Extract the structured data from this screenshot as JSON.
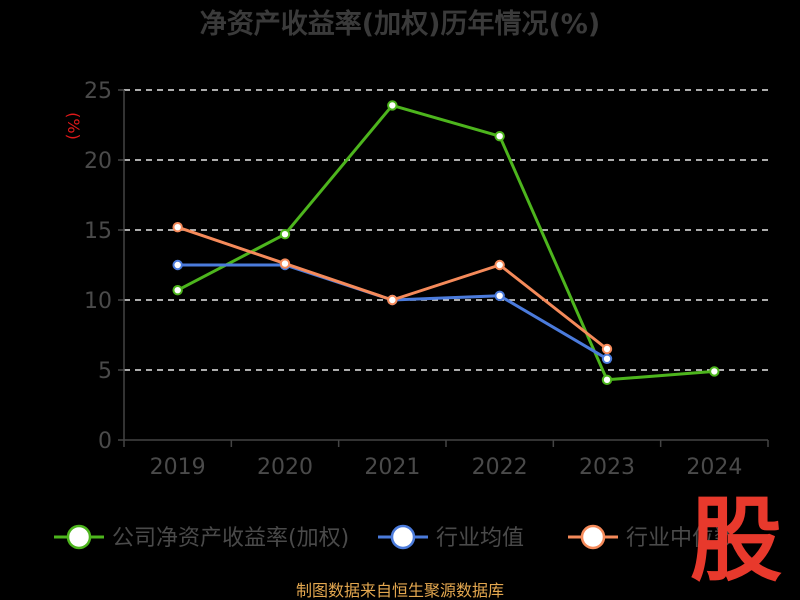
{
  "chart_data": {
    "type": "line",
    "title": "净资产收益率(加权)历年情况(%)",
    "ylabel": "(%)",
    "xlabel": "",
    "categories": [
      "2019",
      "2020",
      "2021",
      "2022",
      "2023",
      "2024"
    ],
    "ylim": [
      0,
      25
    ],
    "yticks": [
      0,
      5,
      10,
      15,
      20,
      25
    ],
    "grid": true,
    "legend_position": "bottom",
    "series": [
      {
        "name": "公司净资产收益率(加权)",
        "color": "#4db51d",
        "values": [
          10.7,
          14.7,
          23.9,
          21.7,
          4.3,
          4.9
        ]
      },
      {
        "name": "行业均值",
        "color": "#4b7bdc",
        "values": [
          12.5,
          12.5,
          10.0,
          10.3,
          5.8,
          null
        ]
      },
      {
        "name": "行业中位数",
        "color": "#f58a5a",
        "values": [
          15.2,
          12.6,
          10.0,
          12.5,
          6.5,
          null
        ]
      }
    ]
  },
  "footer": {
    "source": "制图数据来自恒生聚源数据库"
  },
  "watermark": {
    "text": "股"
  }
}
